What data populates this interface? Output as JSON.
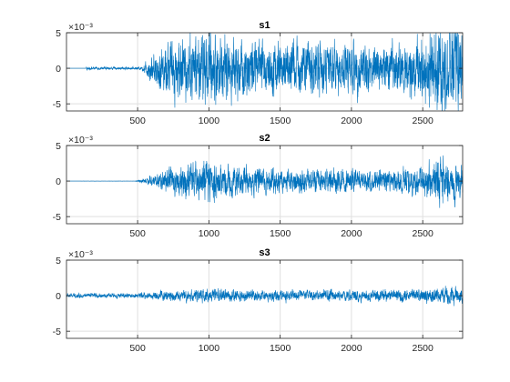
{
  "chart_data": [
    {
      "type": "line",
      "title": "s1",
      "exponent_label": "×10⁻³",
      "xlim": [
        1,
        2780
      ],
      "ylim": [
        -6,
        5
      ],
      "grid": true,
      "xticks": [
        500,
        1000,
        1500,
        2000,
        2500
      ],
      "yticks": [
        -5,
        0,
        5
      ],
      "color": "#0072BD",
      "signal": {
        "quiet_until": 100,
        "noise_start": 140,
        "noise_level": 0.15,
        "onset": 520,
        "envelope": [
          [
            520,
            0.0
          ],
          [
            590,
            1.5
          ],
          [
            700,
            3.0
          ],
          [
            850,
            3.5
          ],
          [
            1000,
            4.0
          ],
          [
            1200,
            3.2
          ],
          [
            1500,
            3.0
          ],
          [
            2000,
            2.8
          ],
          [
            2300,
            2.8
          ],
          [
            2500,
            3.5
          ],
          [
            2650,
            5.2
          ],
          [
            2780,
            4.8
          ]
        ]
      }
    },
    {
      "type": "line",
      "title": "s2",
      "exponent_label": "×10⁻³",
      "xlim": [
        1,
        2780
      ],
      "ylim": [
        -6,
        5
      ],
      "grid": true,
      "xticks": [
        500,
        1000,
        1500,
        2000,
        2500
      ],
      "yticks": [
        -5,
        0,
        5
      ],
      "color": "#0072BD",
      "signal": {
        "quiet_until": 100,
        "noise_start": 100,
        "noise_level": 0.01,
        "onset": 480,
        "envelope": [
          [
            480,
            0.0
          ],
          [
            600,
            0.6
          ],
          [
            700,
            1.4
          ],
          [
            850,
            1.8
          ],
          [
            1000,
            2.3
          ],
          [
            1200,
            1.6
          ],
          [
            1500,
            1.3
          ],
          [
            2000,
            1.2
          ],
          [
            2300,
            1.2
          ],
          [
            2500,
            1.6
          ],
          [
            2600,
            2.6
          ],
          [
            2780,
            2.0
          ]
        ]
      }
    },
    {
      "type": "line",
      "title": "s3",
      "exponent_label": "×10⁻³",
      "xlim": [
        1,
        2780
      ],
      "ylim": [
        -6,
        5
      ],
      "grid": true,
      "xticks": [
        500,
        1000,
        1500,
        2000,
        2500
      ],
      "yticks": [
        -5,
        0,
        5
      ],
      "color": "#0072BD",
      "signal": {
        "quiet_until": 1,
        "noise_start": 1,
        "noise_level": 0.25,
        "onset": 400,
        "envelope": [
          [
            400,
            0.1
          ],
          [
            700,
            0.6
          ],
          [
            1000,
            0.7
          ],
          [
            1500,
            0.6
          ],
          [
            2000,
            0.6
          ],
          [
            2500,
            0.7
          ],
          [
            2700,
            1.0
          ],
          [
            2780,
            0.8
          ]
        ]
      }
    }
  ]
}
